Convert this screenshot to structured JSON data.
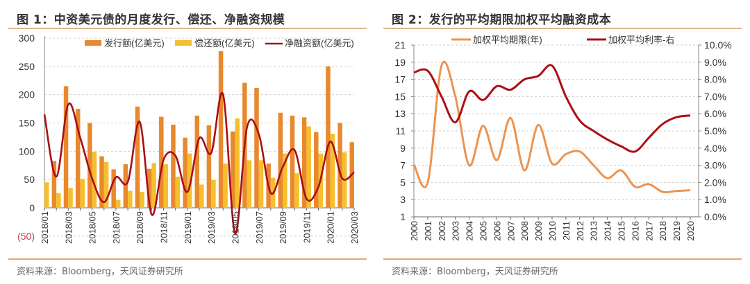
{
  "figures": [
    {
      "title": "图 1：中资美元债的月度发行、偿还、净融资规模",
      "source": "资料来源：Bloomberg，天风证券研究所"
    },
    {
      "title": "图 2：发行的平均期限加权平均融资成本",
      "source": "资料来源：Bloomberg，天风证券研究所"
    }
  ],
  "colors": {
    "issuance": "#e8892e",
    "repayment": "#f6bf2e",
    "net": "#a80f14",
    "duration": "#ec9450",
    "rate": "#ab0f16",
    "rule": "#d9b98a",
    "negative_tick": "#c0394b"
  },
  "chart_data": [
    {
      "type": "bar",
      "title": "图 1：中资美元债的月度发行、偿还、净融资规模",
      "categories": [
        "2018/01",
        "2018/02",
        "2018/03",
        "2018/04",
        "2018/05",
        "2018/06",
        "2018/07",
        "2018/08",
        "2018/09",
        "2018/10",
        "2018/11",
        "2018/12",
        "2019/01",
        "2019/02",
        "2019/03",
        "2019/04",
        "2019/05",
        "2019/06",
        "2019/07",
        "2019/08",
        "2019/09",
        "2019/10",
        "2019/11",
        "2019/12",
        "2020/01",
        "2020/02",
        "2020/03"
      ],
      "tick_labels": [
        "2018/01",
        "2018/03",
        "2018/05",
        "2018/07",
        "2018/09",
        "2018/11",
        "2019/01",
        "2019/03",
        "2019/05",
        "2019/07",
        "2019/09",
        "2019/11",
        "2020/01",
        "2020/03"
      ],
      "series": [
        {
          "name": "发行额(亿美元)",
          "kind": "bar",
          "values": [
            null,
            83,
            215,
            175,
            150,
            91,
            68,
            77,
            179,
            69,
            161,
            147,
            124,
            163,
            146,
            277,
            135,
            221,
            212,
            78,
            168,
            163,
            160,
            134,
            250,
            150,
            116
          ]
        },
        {
          "name": "偿还额(亿美元)",
          "kind": "bar",
          "values": [
            45,
            26,
            35,
            51,
            99,
            81,
            14,
            30,
            28,
            79,
            77,
            55,
            96,
            41,
            49,
            78,
            158,
            84,
            84,
            53,
            96,
            61,
            144,
            96,
            131,
            98,
            0
          ]
        },
        {
          "name": "净融资额(亿美元)",
          "kind": "line",
          "values": [
            165,
            55,
            183,
            124,
            52,
            10,
            54,
            46,
            152,
            -12,
            85,
            92,
            28,
            123,
            97,
            200,
            -45,
            142,
            130,
            26,
            72,
            102,
            16,
            37,
            117,
            52,
            63
          ]
        }
      ],
      "yticks": [
        "(50)",
        "0",
        "50",
        "100",
        "150",
        "200",
        "250",
        "300"
      ],
      "ytick_values": [
        -50,
        0,
        50,
        100,
        150,
        200,
        250,
        300
      ],
      "ylim": [
        -50,
        300
      ],
      "xlabel": "",
      "ylabel": "",
      "grid": true,
      "legend": "top"
    },
    {
      "type": "line",
      "title": "图 2：发行的平均期限加权平均融资成本",
      "categories": [
        "2000",
        "2001",
        "2002",
        "2003",
        "2004",
        "2005",
        "2006",
        "2007",
        "2008",
        "2009",
        "2010",
        "2011",
        "2012",
        "2013",
        "2014",
        "2015",
        "2016",
        "2017",
        "2018",
        "2019",
        "2020"
      ],
      "series": [
        {
          "name": "加权平均期限(年)",
          "axis": "left",
          "values": [
            7.1,
            5.0,
            18.6,
            15.0,
            7.0,
            11.6,
            7.6,
            12.5,
            6.4,
            11.7,
            7.2,
            8.3,
            8.6,
            7.0,
            5.5,
            6.4,
            4.5,
            4.8,
            3.9,
            4.0,
            4.1
          ]
        },
        {
          "name": "加权平均利率-右",
          "axis": "right",
          "values": [
            8.4,
            8.5,
            7.0,
            5.5,
            7.3,
            6.8,
            7.6,
            7.4,
            8.0,
            8.2,
            8.8,
            7.0,
            5.6,
            5.0,
            4.5,
            4.1,
            3.8,
            4.6,
            5.4,
            5.8,
            5.9
          ]
        }
      ],
      "yticks_left": [
        "1",
        "3",
        "5",
        "7",
        "9",
        "11",
        "13",
        "15",
        "17",
        "19",
        "21"
      ],
      "ylim_left": [
        1,
        21
      ],
      "yticks_right": [
        "0.0%",
        "1.0%",
        "2.0%",
        "3.0%",
        "4.0%",
        "5.0%",
        "6.0%",
        "7.0%",
        "8.0%",
        "9.0%",
        "10.0%"
      ],
      "ylim_right": [
        0,
        10
      ],
      "grid": true,
      "legend": "top"
    }
  ]
}
